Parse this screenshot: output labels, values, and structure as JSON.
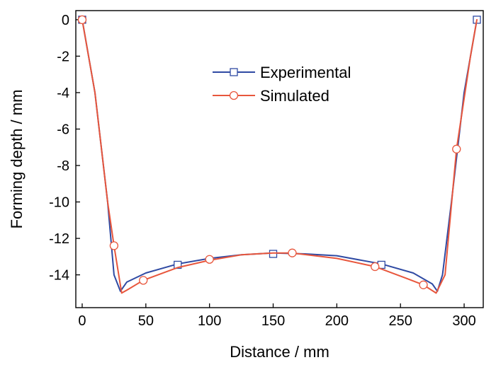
{
  "chart_data": {
    "type": "line",
    "title": "",
    "xlabel": "Distance / mm",
    "ylabel": "Forming depth / mm",
    "xlim": [
      -5,
      315
    ],
    "ylim": [
      -15.8,
      0.5
    ],
    "xticks": [
      0,
      50,
      100,
      150,
      200,
      250,
      300
    ],
    "yticks": [
      0,
      -2,
      -4,
      -6,
      -8,
      -10,
      -12,
      -14
    ],
    "xtick_labels": [
      "0",
      "50",
      "100",
      "150",
      "200",
      "250",
      "300"
    ],
    "ytick_labels": [
      "0",
      "-2",
      "-4",
      "-6",
      "-8",
      "-10",
      "-12",
      "-14"
    ],
    "grid": false,
    "legend": "upper-center",
    "series": [
      {
        "name": "Experimental",
        "color": "#2f4aa3",
        "marker": "square",
        "line_points": [
          [
            0,
            0
          ],
          [
            10,
            -4
          ],
          [
            20,
            -10
          ],
          [
            25,
            -14
          ],
          [
            30,
            -14.9
          ],
          [
            35,
            -14.4
          ],
          [
            50,
            -13.9
          ],
          [
            75,
            -13.4
          ],
          [
            100,
            -13.1
          ],
          [
            125,
            -12.9
          ],
          [
            150,
            -12.8
          ],
          [
            175,
            -12.85
          ],
          [
            200,
            -12.95
          ],
          [
            235,
            -13.4
          ],
          [
            260,
            -13.9
          ],
          [
            275,
            -14.5
          ],
          [
            279,
            -14.9
          ],
          [
            283,
            -14.0
          ],
          [
            290,
            -10
          ],
          [
            300,
            -4
          ],
          [
            310,
            0
          ]
        ],
        "marker_points": [
          [
            0,
            0
          ],
          [
            75,
            -13.45
          ],
          [
            150,
            -12.85
          ],
          [
            235,
            -13.45
          ],
          [
            310,
            0
          ]
        ]
      },
      {
        "name": "Simulated",
        "color": "#e8563c",
        "marker": "circle",
        "line_points": [
          [
            0,
            0
          ],
          [
            10,
            -4
          ],
          [
            20,
            -10
          ],
          [
            25,
            -12.4
          ],
          [
            31,
            -15.0
          ],
          [
            36,
            -14.8
          ],
          [
            48,
            -14.3
          ],
          [
            75,
            -13.6
          ],
          [
            100,
            -13.2
          ],
          [
            125,
            -12.9
          ],
          [
            150,
            -12.8
          ],
          [
            165,
            -12.8
          ],
          [
            200,
            -13.1
          ],
          [
            230,
            -13.55
          ],
          [
            255,
            -14.2
          ],
          [
            268,
            -14.55
          ],
          [
            278,
            -15.0
          ],
          [
            285,
            -14.0
          ],
          [
            294,
            -7.1
          ],
          [
            305,
            -2
          ],
          [
            310,
            0
          ]
        ],
        "marker_points": [
          [
            0,
            0
          ],
          [
            25,
            -12.4
          ],
          [
            48,
            -14.3
          ],
          [
            100,
            -13.15
          ],
          [
            165,
            -12.8
          ],
          [
            230,
            -13.55
          ],
          [
            268,
            -14.55
          ],
          [
            294,
            -7.1
          ]
        ]
      }
    ]
  }
}
